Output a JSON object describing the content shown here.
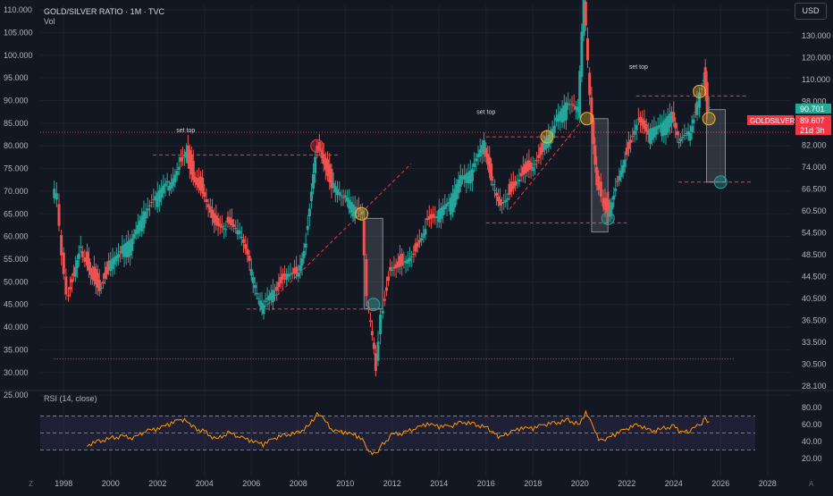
{
  "chart_data": {
    "type": "candlestick",
    "title": "GOLD/SILVER RATIO · 1M · TVC",
    "subtitle": "Vol",
    "currency_button": "USD",
    "left_axis_ticks": [
      "110.000",
      "105.000",
      "100.000",
      "95.000",
      "90.000",
      "85.000",
      "80.000",
      "75.000",
      "70.000",
      "65.000",
      "60.000",
      "55.000",
      "50.000",
      "45.000",
      "40.000",
      "35.000",
      "30.000",
      "25.000"
    ],
    "right_axis_ticks": [
      "130.000",
      "120.000",
      "110.000",
      "98.000",
      "90.000",
      "82.000",
      "74.000",
      "66.500",
      "60.500",
      "54.500",
      "48.500",
      "44.500",
      "40.500",
      "36.500",
      "33.500",
      "30.500",
      "28.100"
    ],
    "x_ticks": [
      "1998",
      "2000",
      "2002",
      "2004",
      "2006",
      "2008",
      "2010",
      "2012",
      "2014",
      "2016",
      "2018",
      "2020",
      "2022",
      "2024",
      "2026",
      "2028"
    ],
    "price_labels": {
      "last": "90.701",
      "symbol": "GOLDSILVER",
      "close": "89.607",
      "countdown": "21d 3h",
      "colors": {
        "last": "#22ab94",
        "close": "#f23645"
      }
    },
    "annotations": [
      "set top",
      "set top",
      "set top"
    ],
    "series": [
      {
        "name": "",
        "points": [
          [
            1997.6,
            70
          ],
          [
            1997.8,
            68
          ],
          [
            1998.0,
            55
          ],
          [
            1998.2,
            46
          ],
          [
            1998.5,
            52
          ],
          [
            1998.8,
            58
          ],
          [
            1999.0,
            56
          ],
          [
            1999.3,
            52
          ],
          [
            1999.6,
            49
          ],
          [
            2000.0,
            54
          ],
          [
            2000.5,
            56
          ],
          [
            2001.0,
            58
          ],
          [
            2001.5,
            64
          ],
          [
            2002.0,
            68
          ],
          [
            2002.5,
            71
          ],
          [
            2003.0,
            76
          ],
          [
            2003.3,
            79
          ],
          [
            2003.6,
            74
          ],
          [
            2004.0,
            71
          ],
          [
            2004.5,
            64
          ],
          [
            2005.0,
            63
          ],
          [
            2005.5,
            61
          ],
          [
            2006.0,
            53
          ],
          [
            2006.3,
            46
          ],
          [
            2006.6,
            44
          ],
          [
            2007.0,
            47
          ],
          [
            2007.5,
            52
          ],
          [
            2008.0,
            52
          ],
          [
            2008.4,
            60
          ],
          [
            2008.8,
            79
          ],
          [
            2009.0,
            80
          ],
          [
            2009.5,
            72
          ],
          [
            2010.0,
            68
          ],
          [
            2010.5,
            65
          ],
          [
            2010.8,
            64
          ],
          [
            2011.0,
            46
          ],
          [
            2011.3,
            34
          ],
          [
            2011.4,
            31
          ],
          [
            2011.6,
            43
          ],
          [
            2012.0,
            54
          ],
          [
            2012.5,
            55
          ],
          [
            2013.0,
            57
          ],
          [
            2013.5,
            63
          ],
          [
            2014.0,
            64
          ],
          [
            2014.5,
            66
          ],
          [
            2015.0,
            72
          ],
          [
            2015.5,
            74
          ],
          [
            2016.0,
            80
          ],
          [
            2016.3,
            73
          ],
          [
            2016.6,
            68
          ],
          [
            2017.0,
            70
          ],
          [
            2017.5,
            74
          ],
          [
            2018.0,
            76
          ],
          [
            2018.5,
            80
          ],
          [
            2019.0,
            84
          ],
          [
            2019.5,
            88
          ],
          [
            2020.0,
            87
          ],
          [
            2020.25,
            113
          ],
          [
            2020.5,
            90
          ],
          [
            2020.8,
            72
          ],
          [
            2021.0,
            69
          ],
          [
            2021.3,
            66
          ],
          [
            2021.6,
            72
          ],
          [
            2022.0,
            78
          ],
          [
            2022.5,
            86
          ],
          [
            2023.0,
            82
          ],
          [
            2023.5,
            83
          ],
          [
            2024.0,
            86
          ],
          [
            2024.3,
            80
          ],
          [
            2024.7,
            82
          ],
          [
            2025.0,
            88
          ],
          [
            2025.2,
            92
          ],
          [
            2025.35,
            96
          ],
          [
            2025.5,
            89
          ],
          [
            2025.6,
            89.6
          ]
        ]
      }
    ],
    "rsi": {
      "title": "RSI (14, close)",
      "ticks": [
        "80.00",
        "60.00",
        "40.00",
        "20.00"
      ],
      "series": [
        [
          1999.0,
          36
        ],
        [
          1999.5,
          40
        ],
        [
          2000.0,
          44
        ],
        [
          2000.5,
          46
        ],
        [
          2001.0,
          44
        ],
        [
          2001.5,
          52
        ],
        [
          2002.0,
          54
        ],
        [
          2002.5,
          60
        ],
        [
          2003.0,
          66
        ],
        [
          2003.3,
          64
        ],
        [
          2003.6,
          55
        ],
        [
          2004.0,
          52
        ],
        [
          2004.5,
          42
        ],
        [
          2005.0,
          50
        ],
        [
          2005.5,
          45
        ],
        [
          2006.0,
          40
        ],
        [
          2006.5,
          36
        ],
        [
          2007.0,
          44
        ],
        [
          2007.5,
          48
        ],
        [
          2008.0,
          50
        ],
        [
          2008.5,
          60
        ],
        [
          2008.8,
          72
        ],
        [
          2009.0,
          68
        ],
        [
          2009.5,
          52
        ],
        [
          2010.0,
          50
        ],
        [
          2010.5,
          46
        ],
        [
          2010.8,
          40
        ],
        [
          2011.0,
          30
        ],
        [
          2011.3,
          24
        ],
        [
          2011.5,
          34
        ],
        [
          2012.0,
          48
        ],
        [
          2012.5,
          50
        ],
        [
          2013.0,
          55
        ],
        [
          2013.5,
          60
        ],
        [
          2014.0,
          57
        ],
        [
          2014.5,
          58
        ],
        [
          2015.0,
          63
        ],
        [
          2015.5,
          60
        ],
        [
          2016.0,
          57
        ],
        [
          2016.3,
          50
        ],
        [
          2016.6,
          44
        ],
        [
          2017.0,
          50
        ],
        [
          2017.5,
          55
        ],
        [
          2018.0,
          55
        ],
        [
          2018.5,
          60
        ],
        [
          2019.0,
          62
        ],
        [
          2019.5,
          65
        ],
        [
          2020.0,
          60
        ],
        [
          2020.25,
          74
        ],
        [
          2020.5,
          60
        ],
        [
          2020.8,
          42
        ],
        [
          2021.0,
          40
        ],
        [
          2021.5,
          48
        ],
        [
          2022.0,
          55
        ],
        [
          2022.5,
          60
        ],
        [
          2023.0,
          52
        ],
        [
          2023.5,
          55
        ],
        [
          2024.0,
          58
        ],
        [
          2024.3,
          50
        ],
        [
          2024.7,
          52
        ],
        [
          2025.0,
          58
        ],
        [
          2025.2,
          62
        ],
        [
          2025.35,
          68
        ],
        [
          2025.6,
          58
        ]
      ],
      "ylim": [
        20,
        80
      ]
    },
    "ylim": [
      27,
      111
    ],
    "xlim": [
      1997.0,
      2029.0
    ],
    "grid": true,
    "legend": "none",
    "up_color": "#26a69a",
    "down_color": "#ef5350",
    "rsi_color": "#ff9800"
  },
  "corner_left": "Z",
  "corner_right": "A"
}
